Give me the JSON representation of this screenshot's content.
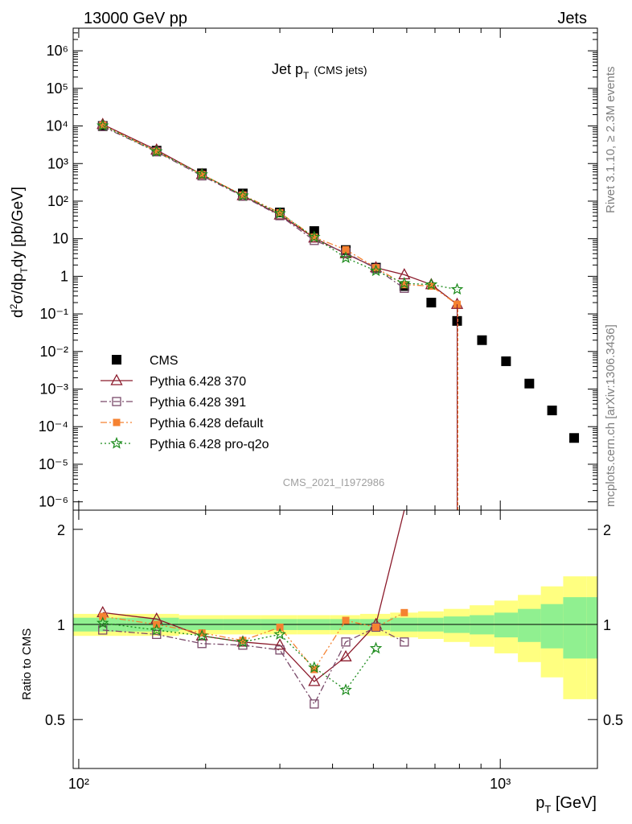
{
  "header": {
    "left": "13000 GeV pp",
    "right": "Jets"
  },
  "side_labels": {
    "rivet": "Rivet 3.1.10, ≥ 2.3M events",
    "mcplots": "mcplots.cern.ch [arXiv:1306.3436]"
  },
  "colors": {
    "cms": "#000000",
    "p370": "#8b1a2b",
    "p391": "#7a4a6a",
    "pdefault": "#f58231",
    "pq2o": "#1a8a1a",
    "band_inner": "#90f090",
    "band_outer": "#ffff80"
  },
  "chart_data": [
    {
      "type": "scatter",
      "title": "Jet p",
      "title_sub": "T",
      "title_extra": "(CMS jets)",
      "ylabel": "d²σ/dp_T dy [pb/GeV]",
      "xscale": "log",
      "yscale": "log",
      "xlim": [
        97,
        1700
      ],
      "ylim": [
        6e-07,
        4000000.0
      ],
      "watermark": "CMS_2021_I1972986",
      "legend_position": "lower-left",
      "y_ticks": [
        "10⁻⁶",
        "10⁻⁵",
        "10⁻⁴",
        "10⁻³",
        "10⁻²",
        "10⁻¹",
        "1",
        "10",
        "10²",
        "10³",
        "10⁴",
        "10⁵",
        "10⁶"
      ],
      "series": [
        {
          "name": "CMS",
          "key": "cms",
          "marker": "square-filled",
          "line": "none",
          "x": [
            114,
            153,
            196,
            245,
            300,
            362,
            430,
            507,
            592,
            686,
            790,
            905,
            1032,
            1172,
            1327,
            1497
          ],
          "y": [
            10000.0,
            2200.0,
            550.0,
            160.0,
            50.0,
            16.0,
            5.0,
            1.7,
            0.55,
            0.2,
            0.065,
            0.02,
            0.0055,
            0.0014,
            0.00027,
            5e-05
          ]
        },
        {
          "name": "Pythia 6.428 370",
          "key": "p370",
          "marker": "triangle-open",
          "line": "solid",
          "x": [
            114,
            153,
            196,
            245,
            300,
            362,
            430,
            507,
            592,
            686,
            790
          ],
          "y": [
            11000.0,
            2300.0,
            510.0,
            140.0,
            43.0,
            10.5,
            4.0,
            1.7,
            1.1,
            0.6,
            0.18
          ]
        },
        {
          "name": "Pythia 6.428 391",
          "key": "p391",
          "marker": "square-open",
          "line": "dashdot",
          "x": [
            114,
            153,
            196,
            245,
            300,
            362,
            430,
            507,
            592
          ],
          "y": [
            9600.0,
            2050.0,
            470.0,
            135.0,
            41.0,
            9.0,
            4.3,
            1.6,
            0.48
          ]
        },
        {
          "name": "Pythia 6.428 default",
          "key": "pdefault",
          "marker": "square-filled-small",
          "line": "dashdotdot",
          "x": [
            114,
            153,
            196,
            245,
            300,
            362,
            430,
            507,
            592,
            686,
            790
          ],
          "y": [
            10500.0,
            2100.0,
            510.0,
            145.0,
            49.0,
            11.0,
            5.1,
            1.7,
            0.6,
            0.55,
            0.18
          ]
        },
        {
          "name": "Pythia 6.428 pro-q2o",
          "key": "pq2o",
          "marker": "star",
          "line": "dotted",
          "x": [
            114,
            153,
            196,
            245,
            300,
            362,
            430,
            507,
            592,
            686,
            790
          ],
          "y": [
            10200.0,
            2100.0,
            510.0,
            140.0,
            47.0,
            11.0,
            3.1,
            1.4,
            0.65,
            0.6,
            0.45
          ]
        }
      ]
    },
    {
      "type": "scatter",
      "ylabel": "Ratio to CMS",
      "xlabel": "p_T [GeV]",
      "xscale": "log",
      "xlim": [
        97,
        1700
      ],
      "ylim": [
        0.35,
        2.3
      ],
      "y_ticks": [
        "0.5",
        "1",
        "2"
      ],
      "x_ticks": [
        "10²",
        "10³"
      ],
      "series": [
        {
          "name": "Pythia 6.428 370",
          "key": "p370",
          "x": [
            114,
            153,
            196,
            245,
            300,
            362,
            430,
            507,
            592
          ],
          "y": [
            1.09,
            1.04,
            0.92,
            0.88,
            0.86,
            0.66,
            0.79,
            1.0,
            2.3
          ]
        },
        {
          "name": "Pythia 6.428 391",
          "key": "p391",
          "x": [
            114,
            153,
            196,
            245,
            300,
            362,
            430,
            507,
            592
          ],
          "y": [
            0.96,
            0.93,
            0.87,
            0.86,
            0.83,
            0.56,
            0.88,
            0.98,
            0.88
          ]
        },
        {
          "name": "Pythia 6.428 default",
          "key": "pdefault",
          "x": [
            114,
            153,
            196,
            245,
            300,
            362,
            430,
            507,
            592
          ],
          "y": [
            1.06,
            1.0,
            0.94,
            0.89,
            0.98,
            0.72,
            1.03,
            0.98,
            1.09
          ]
        },
        {
          "name": "Pythia 6.428 pro-q2o",
          "key": "pq2o",
          "x": [
            114,
            153,
            196,
            245,
            300,
            362,
            430,
            507
          ],
          "y": [
            1.01,
            0.96,
            0.92,
            0.88,
            0.93,
            0.73,
            0.62,
            0.84
          ]
        }
      ],
      "band_x_edges": [
        97,
        130,
        173,
        220,
        270,
        330,
        395,
        465,
        548,
        638,
        734,
        846,
        968,
        1101,
        1248,
        1410,
        1600,
        1700
      ],
      "band_inner": [
        0.05,
        0.05,
        0.04,
        0.04,
        0.04,
        0.04,
        0.04,
        0.04,
        0.05,
        0.05,
        0.06,
        0.07,
        0.09,
        0.12,
        0.16,
        0.22,
        0.22
      ],
      "band_outer": [
        0.08,
        0.08,
        0.07,
        0.07,
        0.07,
        0.07,
        0.07,
        0.08,
        0.09,
        0.1,
        0.12,
        0.15,
        0.19,
        0.24,
        0.32,
        0.42,
        0.42
      ]
    }
  ]
}
